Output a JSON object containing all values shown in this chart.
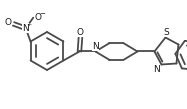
{
  "bg_color": "#ffffff",
  "line_color": "#4a4a4a",
  "line_width": 1.3,
  "font_size": 6.5,
  "fig_width": 1.87,
  "fig_height": 1.09,
  "dpi": 100,
  "xlim": [
    0,
    187
  ],
  "ylim": [
    109,
    0
  ]
}
